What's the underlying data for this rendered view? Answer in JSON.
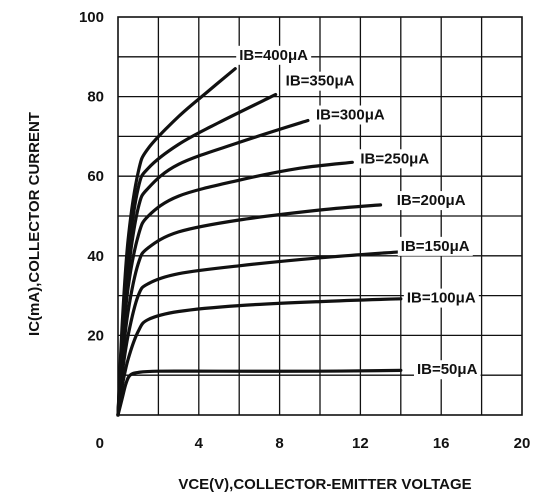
{
  "chart_data": {
    "type": "line",
    "title": "",
    "xlabel": "VCE(V),COLLECTOR-EMITTER VOLTAGE",
    "ylabel": "IC(mA),COLLECTOR CURRENT",
    "xlim": [
      0,
      20
    ],
    "ylim": [
      0,
      100
    ],
    "x_ticks": [
      "0",
      "4",
      "8",
      "12",
      "16",
      "20"
    ],
    "y_ticks": [
      "20",
      "40",
      "60",
      "80",
      "100"
    ],
    "grid": true,
    "series": [
      {
        "name": "IB=50μA",
        "x": [
          0,
          0.2,
          0.4,
          0.6,
          1,
          2,
          5,
          10,
          14
        ],
        "y": [
          0,
          4,
          8,
          10,
          10.7,
          11,
          11,
          11,
          11.2
        ]
      },
      {
        "name": "IB=100μA",
        "x": [
          0,
          0.2,
          0.5,
          1,
          1.5,
          3,
          6,
          10,
          14
        ],
        "y": [
          0,
          7,
          14,
          21,
          24,
          26,
          27.5,
          28.5,
          29.2
        ]
      },
      {
        "name": "IB=150μA",
        "x": [
          0,
          0.2,
          0.5,
          1,
          1.5,
          3,
          6,
          10,
          14
        ],
        "y": [
          0,
          10,
          20,
          30,
          33,
          35.5,
          37.5,
          39.5,
          41
        ]
      },
      {
        "name": "IB=200μA",
        "x": [
          0,
          0.2,
          0.5,
          1,
          1.5,
          3,
          6,
          10,
          13
        ],
        "y": [
          0,
          13,
          26,
          38,
          42,
          46,
          49,
          51.5,
          52.8
        ]
      },
      {
        "name": "IB=250μA",
        "x": [
          0,
          0.2,
          0.5,
          1,
          1.5,
          3,
          6,
          9,
          11.6
        ],
        "y": [
          0,
          16,
          32,
          45,
          50,
          55,
          59,
          62,
          63.5
        ]
      },
      {
        "name": "IB=300μA",
        "x": [
          0,
          0.2,
          0.5,
          1,
          1.5,
          3,
          6,
          9.4
        ],
        "y": [
          0,
          18,
          36,
          52,
          57,
          63,
          68.5,
          74
        ]
      },
      {
        "name": "IB=350μA",
        "x": [
          0,
          0.2,
          0.5,
          1,
          1.5,
          3,
          5,
          7.8
        ],
        "y": [
          0,
          20,
          40,
          57,
          62,
          68,
          73.5,
          80.5
        ]
      },
      {
        "name": "IB=400μA",
        "x": [
          0,
          0.2,
          0.5,
          1,
          1.5,
          3,
          4.5,
          5.8
        ],
        "y": [
          0,
          22,
          44,
          61,
          67,
          75,
          81.5,
          87
        ]
      }
    ],
    "labels": [
      {
        "text": "IB=400μA",
        "x": 6.0,
        "y": 90.5
      },
      {
        "text": "IB=350μA",
        "x": 8.3,
        "y": 84
      },
      {
        "text": "IB=300μA",
        "x": 9.8,
        "y": 75.5
      },
      {
        "text": "IB=250μA",
        "x": 12.0,
        "y": 64.5
      },
      {
        "text": "IB=200μA",
        "x": 13.8,
        "y": 54
      },
      {
        "text": "IB=150μA",
        "x": 14.0,
        "y": 42.5
      },
      {
        "text": "IB=100μA",
        "x": 14.3,
        "y": 29.5
      },
      {
        "text": "IB=50μA",
        "x": 14.8,
        "y": 11.5
      }
    ]
  }
}
